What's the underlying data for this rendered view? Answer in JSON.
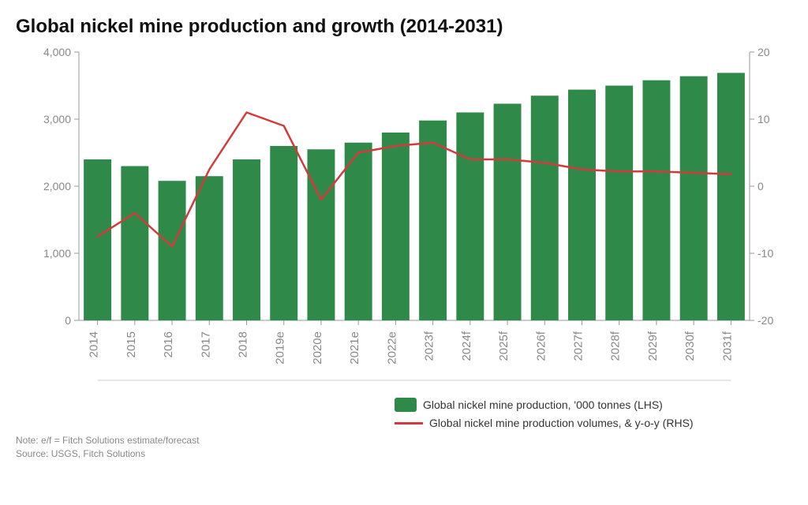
{
  "title": "Global nickel mine production and growth (2014-2031)",
  "chart": {
    "type": "bar+line",
    "categories": [
      "2014",
      "2015",
      "2016",
      "2017",
      "2018",
      "2019e",
      "2020e",
      "2021e",
      "2022e",
      "2023f",
      "2024f",
      "2025f",
      "2026f",
      "2027f",
      "2028f",
      "2029f",
      "2030f",
      "2031f"
    ],
    "bar_values": [
      2400,
      2300,
      2080,
      2150,
      2400,
      2600,
      2550,
      2650,
      2800,
      2980,
      3100,
      3230,
      3350,
      3440,
      3500,
      3580,
      3640,
      3690
    ],
    "line_values": [
      -7.5,
      -4.0,
      -9.0,
      2.5,
      11.0,
      9.0,
      -2.0,
      5.0,
      6.0,
      6.5,
      4.0,
      4.0,
      3.5,
      2.5,
      2.2,
      2.2,
      2.0,
      1.8
    ],
    "bar_color": "#2f8a4a",
    "line_color": "#d23b3b",
    "line_width": 2.5,
    "y_left": {
      "min": 0,
      "max": 4000,
      "ticks": [
        0,
        1000,
        2000,
        3000,
        4000
      ],
      "labels": [
        "0",
        "1,000",
        "2,000",
        "3,000",
        "4,000"
      ]
    },
    "y_right": {
      "min": -20,
      "max": 20,
      "ticks": [
        -20,
        -10,
        0,
        10,
        20
      ],
      "labels": [
        "-20",
        "-10",
        "0",
        "10",
        "20"
      ]
    },
    "background_color": "#ffffff",
    "grid_color": "#cccccc",
    "axis_color": "#999999",
    "tick_label_color": "#888888",
    "tick_fontsize": 14,
    "xlabel_fontsize": 15,
    "bar_width_ratio": 0.74
  },
  "legend": {
    "bar_label": "Global nickel mine production, '000 tonnes (LHS)",
    "line_label": "Global nickel mine production volumes, & y-o-y (RHS)"
  },
  "notes": {
    "line1": "Note: e/f = Fitch Solutions estimate/forecast",
    "line2": "Source: USGS, Fitch Solutions"
  }
}
